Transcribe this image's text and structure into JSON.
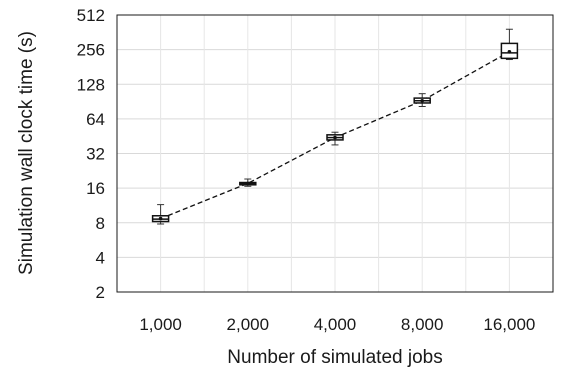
{
  "chart_data": {
    "type": "box",
    "title": "",
    "xlabel": "Number of simulated jobs",
    "ylabel": "Simulation wall clock time (s)",
    "y_scale": "log2",
    "ylim": [
      2,
      512
    ],
    "y_ticks": [
      2,
      4,
      8,
      16,
      32,
      64,
      128,
      256,
      512
    ],
    "grid": "on",
    "categories": [
      "1,000",
      "2,000",
      "4,000",
      "8,000",
      "16,000"
    ],
    "boxes": [
      {
        "category": "1,000",
        "min": 7.8,
        "q1": 8.2,
        "median": 8.6,
        "q3": 9.2,
        "max": 11.5,
        "mean": 8.7
      },
      {
        "category": "2,000",
        "min": 16.6,
        "q1": 17.1,
        "median": 17.5,
        "q3": 17.9,
        "max": 19.2,
        "mean": 17.6
      },
      {
        "category": "4,000",
        "min": 38,
        "q1": 42,
        "median": 44,
        "q3": 46.5,
        "max": 49,
        "mean": 44
      },
      {
        "category": "8,000",
        "min": 82,
        "q1": 88,
        "median": 92,
        "q3": 97,
        "max": 106,
        "mean": 92
      },
      {
        "category": "16,000",
        "min": 210,
        "q1": 215,
        "median": 240,
        "q3": 290,
        "max": 385,
        "mean": 245
      }
    ],
    "trend_line": {
      "style": "dashed",
      "through": "mean"
    }
  }
}
